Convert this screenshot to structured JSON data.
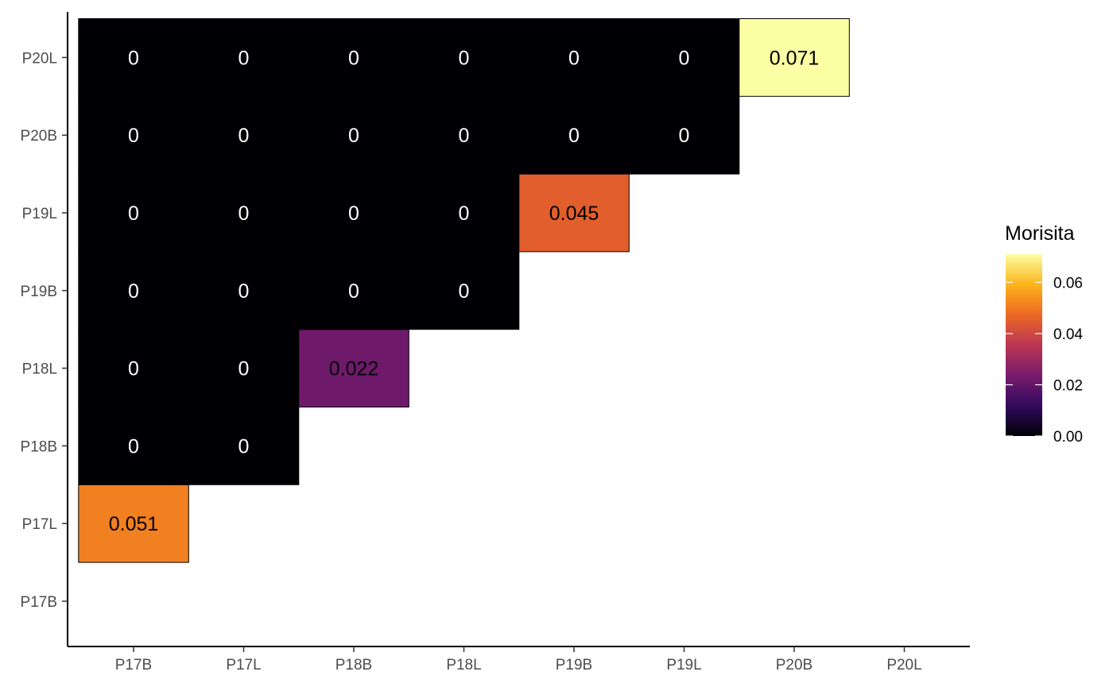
{
  "chart_data": {
    "type": "heatmap",
    "title": "",
    "xlabel": "",
    "ylabel": "",
    "x_categories": [
      "P17B",
      "P17L",
      "P18B",
      "P18L",
      "P19B",
      "P19L",
      "P20B",
      "P20L"
    ],
    "y_categories": [
      "P17B",
      "P17L",
      "P18B",
      "P18L",
      "P19B",
      "P19L",
      "P20B",
      "P20L"
    ],
    "cells": [
      {
        "x": "P17B",
        "y": "P17L",
        "value": 0.051,
        "label": "0.051"
      },
      {
        "x": "P17B",
        "y": "P18B",
        "value": 0,
        "label": "0"
      },
      {
        "x": "P17B",
        "y": "P18L",
        "value": 0,
        "label": "0"
      },
      {
        "x": "P17B",
        "y": "P19B",
        "value": 0,
        "label": "0"
      },
      {
        "x": "P17B",
        "y": "P19L",
        "value": 0,
        "label": "0"
      },
      {
        "x": "P17B",
        "y": "P20B",
        "value": 0,
        "label": "0"
      },
      {
        "x": "P17B",
        "y": "P20L",
        "value": 0,
        "label": "0"
      },
      {
        "x": "P17L",
        "y": "P18B",
        "value": 0,
        "label": "0"
      },
      {
        "x": "P17L",
        "y": "P18L",
        "value": 0,
        "label": "0"
      },
      {
        "x": "P17L",
        "y": "P19B",
        "value": 0,
        "label": "0"
      },
      {
        "x": "P17L",
        "y": "P19L",
        "value": 0,
        "label": "0"
      },
      {
        "x": "P17L",
        "y": "P20B",
        "value": 0,
        "label": "0"
      },
      {
        "x": "P17L",
        "y": "P20L",
        "value": 0,
        "label": "0"
      },
      {
        "x": "P18B",
        "y": "P18L",
        "value": 0.022,
        "label": "0.022"
      },
      {
        "x": "P18B",
        "y": "P19B",
        "value": 0,
        "label": "0"
      },
      {
        "x": "P18B",
        "y": "P19L",
        "value": 0,
        "label": "0"
      },
      {
        "x": "P18B",
        "y": "P20B",
        "value": 0,
        "label": "0"
      },
      {
        "x": "P18B",
        "y": "P20L",
        "value": 0,
        "label": "0"
      },
      {
        "x": "P18L",
        "y": "P19B",
        "value": 0,
        "label": "0"
      },
      {
        "x": "P18L",
        "y": "P19L",
        "value": 0,
        "label": "0"
      },
      {
        "x": "P18L",
        "y": "P20B",
        "value": 0,
        "label": "0"
      },
      {
        "x": "P18L",
        "y": "P20L",
        "value": 0,
        "label": "0"
      },
      {
        "x": "P19B",
        "y": "P19L",
        "value": 0.045,
        "label": "0.045"
      },
      {
        "x": "P19B",
        "y": "P20B",
        "value": 0,
        "label": "0"
      },
      {
        "x": "P19B",
        "y": "P20L",
        "value": 0,
        "label": "0"
      },
      {
        "x": "P19L",
        "y": "P20B",
        "value": 0,
        "label": "0"
      },
      {
        "x": "P19L",
        "y": "P20L",
        "value": 0,
        "label": "0"
      },
      {
        "x": "P20B",
        "y": "P20L",
        "value": 0.071,
        "label": "0.071"
      }
    ],
    "legend": {
      "title": "Morisita",
      "position": "right",
      "range": [
        0,
        0.071
      ],
      "ticks": [
        0.0,
        0.02,
        0.04,
        0.06
      ],
      "tick_labels": [
        "0.00",
        "0.02",
        "0.04",
        "0.06"
      ],
      "palette": "inferno",
      "palette_stops": [
        "#000004",
        "#320A5E",
        "#781B6C",
        "#BB3654",
        "#EC6824",
        "#FBB41A",
        "#FCFFA4"
      ]
    },
    "grid": false
  }
}
